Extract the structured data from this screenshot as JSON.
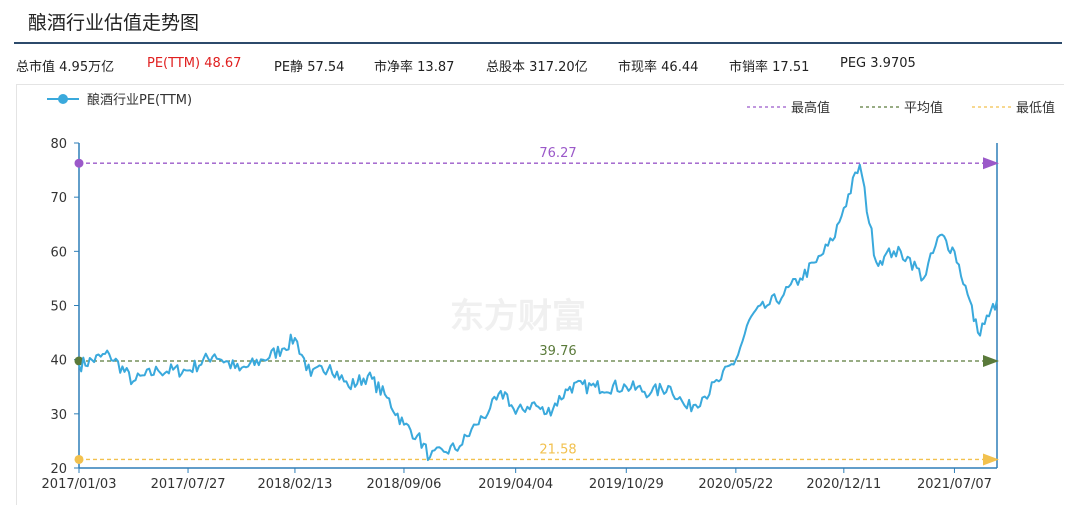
{
  "header": {
    "title": "酿酒行业估值走势图"
  },
  "stats": [
    {
      "label": "总市值",
      "value": "4.95万亿",
      "highlight": false
    },
    {
      "label": "PE(TTM)",
      "value": "48.67",
      "highlight": true
    },
    {
      "label": "PE静",
      "value": "57.54",
      "highlight": false
    },
    {
      "label": "市净率",
      "value": "13.87",
      "highlight": false
    },
    {
      "label": "总股本",
      "value": "317.20亿",
      "highlight": false
    },
    {
      "label": "市现率",
      "value": "46.44",
      "highlight": false
    },
    {
      "label": "市销率",
      "value": "17.51",
      "highlight": false
    },
    {
      "label": "PEG",
      "value": "3.9705",
      "highlight": false
    }
  ],
  "watermark": "东方财富",
  "colors": {
    "series": "#3aa9dc",
    "max": "#9b59c9",
    "avg": "#5a7a3a",
    "min": "#f2c14e"
  },
  "chart_data": {
    "type": "line",
    "series": [
      {
        "name": "酿酒行业PE(TTM)",
        "x": [
          "2017/01/03",
          "2017/03/01",
          "2017/04/15",
          "2017/06/01",
          "2017/07/27",
          "2017/09/15",
          "2017/11/01",
          "2017/12/15",
          "2018/01/20",
          "2018/02/13",
          "2018/03/15",
          "2018/04/20",
          "2018/05/25",
          "2018/06/30",
          "2018/08/05",
          "2018/09/06",
          "2018/10/01",
          "2018/10/25",
          "2018/11/20",
          "2018/12/20",
          "2019/01/20",
          "2019/02/15",
          "2019/03/15",
          "2019/04/04",
          "2019/05/05",
          "2019/06/01",
          "2019/07/15",
          "2019/09/01",
          "2019/10/29",
          "2019/12/15",
          "2020/01/20",
          "2020/02/20",
          "2020/03/20",
          "2020/04/20",
          "2020/05/22",
          "2020/06/20",
          "2020/07/20",
          "2020/08/20",
          "2020/09/20",
          "2020/10/20",
          "2020/11/20",
          "2020/12/11",
          "2021/01/10",
          "2021/02/10",
          "2021/02/25",
          "2021/03/15",
          "2021/04/10",
          "2021/05/10",
          "2021/06/10",
          "2021/07/07",
          "2021/08/01",
          "2021/08/20",
          "2021/09/10",
          "2021/09/25"
        ],
        "y": [
          39,
          41,
          36,
          38,
          38,
          41,
          38,
          40,
          42,
          44,
          37,
          39,
          35,
          37,
          33,
          28,
          26,
          22,
          23,
          24,
          28,
          31,
          34,
          30,
          32,
          30,
          35,
          35,
          35,
          34,
          35,
          31,
          33,
          36,
          40,
          48,
          50,
          52,
          55,
          58,
          62,
          68,
          76,
          58,
          59,
          60,
          59,
          55,
          63,
          60,
          52,
          45,
          48,
          51
        ]
      }
    ],
    "reference_lines": [
      {
        "name": "最高值",
        "value": 76.27,
        "label": "76.27"
      },
      {
        "name": "平均值",
        "value": 39.76,
        "label": "39.76"
      },
      {
        "name": "最低值",
        "value": 21.58,
        "label": "21.58"
      }
    ],
    "yticks": [
      20,
      30,
      40,
      50,
      60,
      70,
      80
    ],
    "ylim": [
      20,
      80
    ],
    "xticks": [
      "2017/01/03",
      "2017/07/27",
      "2018/02/13",
      "2018/09/06",
      "2019/04/04",
      "2019/10/29",
      "2020/05/22",
      "2020/12/11",
      "2021/07/07"
    ],
    "xlim": [
      "2017/01/03",
      "2021/09/25"
    ],
    "legend_position": "top"
  }
}
